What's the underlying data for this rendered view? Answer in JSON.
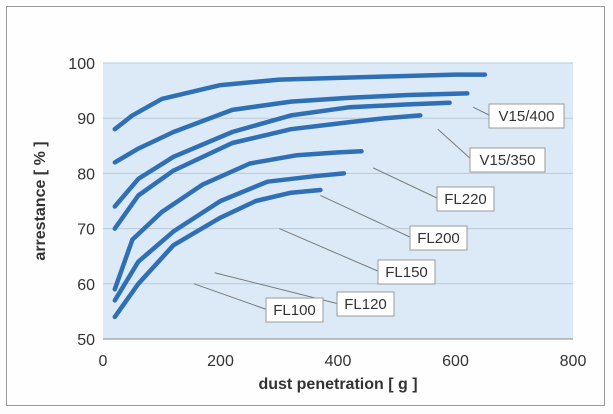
{
  "chart_data": {
    "type": "line",
    "xlabel": "dust penetration [ g ]",
    "ylabel": "arrestance [ % ]",
    "xlim": [
      0,
      800
    ],
    "ylim": [
      50,
      100
    ],
    "xticks": [
      0,
      200,
      400,
      600,
      800
    ],
    "yticks": [
      50,
      60,
      70,
      80,
      90,
      100
    ],
    "grid": "horizontal",
    "plot_background": "#dceaf7",
    "line_color": "#2f6fb6",
    "series": [
      {
        "name": "V15/400",
        "x": [
          20,
          50,
          100,
          200,
          300,
          400,
          500,
          600,
          650
        ],
        "y": [
          88,
          90.5,
          93.5,
          96,
          97,
          97.3,
          97.6,
          97.9,
          97.9
        ],
        "label_anchor": [
          630,
          92
        ]
      },
      {
        "name": "V15/350",
        "x": [
          20,
          60,
          120,
          220,
          320,
          420,
          520,
          620
        ],
        "y": [
          82,
          84.5,
          87.5,
          91.5,
          93,
          93.7,
          94.2,
          94.5
        ],
        "label_anchor": [
          570,
          88
        ]
      },
      {
        "name": "FL220",
        "x": [
          20,
          60,
          120,
          220,
          320,
          420,
          520,
          590
        ],
        "y": [
          74,
          79,
          83,
          87.5,
          90.5,
          92,
          92.5,
          92.8
        ],
        "label_anchor": [
          460,
          81
        ]
      },
      {
        "name": "FL200",
        "x": [
          20,
          60,
          120,
          220,
          320,
          420,
          480,
          540
        ],
        "y": [
          70,
          76,
          80.5,
          85.5,
          88,
          89.3,
          90,
          90.5
        ],
        "label_anchor": [
          370,
          76
        ]
      },
      {
        "name": "FL150",
        "x": [
          20,
          50,
          100,
          170,
          250,
          330,
          400,
          440
        ],
        "y": [
          59,
          68,
          73,
          78,
          81.8,
          83.3,
          83.8,
          84
        ],
        "label_anchor": [
          300,
          70
        ]
      },
      {
        "name": "FL120",
        "x": [
          20,
          60,
          120,
          200,
          280,
          360,
          410
        ],
        "y": [
          57,
          64,
          69.5,
          75,
          78.5,
          79.5,
          80
        ],
        "label_anchor": [
          190,
          62
        ]
      },
      {
        "name": "FL100",
        "x": [
          20,
          60,
          120,
          200,
          260,
          320,
          370
        ],
        "y": [
          54,
          60,
          67,
          72,
          75,
          76.5,
          77
        ],
        "label_anchor": [
          155,
          60
        ]
      }
    ],
    "labels": [
      {
        "text": "V15/400",
        "series": "V15/400"
      },
      {
        "text": "V15/350",
        "series": "V15/350"
      },
      {
        "text": "FL220",
        "series": "FL220"
      },
      {
        "text": "FL200",
        "series": "FL200"
      },
      {
        "text": "FL150",
        "series": "FL150"
      },
      {
        "text": "FL120",
        "series": "FL120"
      },
      {
        "text": "FL100",
        "series": "FL100"
      }
    ]
  }
}
